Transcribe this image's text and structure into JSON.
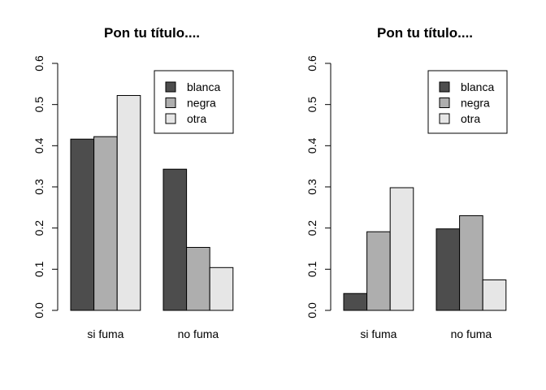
{
  "chart_data": [
    {
      "type": "bar",
      "title": "Pon tu título....",
      "categories": [
        "si fuma",
        "no fuma"
      ],
      "series": [
        {
          "name": "blanca",
          "values": [
            0.416,
            0.343
          ],
          "color": "#4d4d4d"
        },
        {
          "name": "negra",
          "values": [
            0.422,
            0.153
          ],
          "color": "#aeaeae"
        },
        {
          "name": "otra",
          "values": [
            0.522,
            0.104
          ],
          "color": "#e6e6e6"
        }
      ],
      "ylim": [
        0,
        0.6
      ],
      "yticks": [
        "0.0",
        "0.1",
        "0.2",
        "0.3",
        "0.4",
        "0.5",
        "0.6"
      ],
      "grid": false,
      "legend": "top-right"
    },
    {
      "type": "bar",
      "title": "Pon tu título....",
      "categories": [
        "si fuma",
        "no fuma"
      ],
      "series": [
        {
          "name": "blanca",
          "values": [
            0.041,
            0.198
          ],
          "color": "#4d4d4d"
        },
        {
          "name": "negra",
          "values": [
            0.191,
            0.23
          ],
          "color": "#aeaeae"
        },
        {
          "name": "otra",
          "values": [
            0.298,
            0.074
          ],
          "color": "#e6e6e6"
        }
      ],
      "ylim": [
        0,
        0.6
      ],
      "yticks": [
        "0.0",
        "0.1",
        "0.2",
        "0.3",
        "0.4",
        "0.5",
        "0.6"
      ],
      "grid": false,
      "legend": "top-right"
    }
  ]
}
